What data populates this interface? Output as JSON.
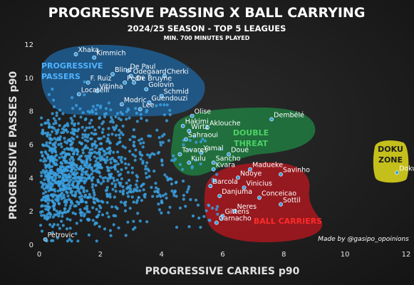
{
  "chart_data": {
    "type": "scatter",
    "title": "PROGRESSIVE PASSING X BALL CARRYING",
    "subtitle": "2024/25 SEASON - TOP 5 LEAGUES",
    "subtitle2": "MIN. 700 MINUTES PLAYED",
    "xlabel": "PROGRESSIVE CARRIES p90",
    "ylabel": "PROGRESSIVE PASSES p90",
    "xlim": [
      0,
      12
    ],
    "ylim": [
      0,
      12
    ],
    "xticks": [
      0,
      2,
      4,
      6,
      8,
      10,
      12
    ],
    "yticks": [
      0,
      2,
      4,
      6,
      8,
      10,
      12
    ],
    "grid": false,
    "credit": "Made by @gasipo_opoinions",
    "colors": {
      "points": "#3aa0e0",
      "passers_zone": "#1f6aa8",
      "double_zone": "#1f8a45",
      "carriers_zone": "#c2161f",
      "doku_zone": "#d7d21c"
    },
    "zones": [
      {
        "key": "passers",
        "lines": [
          "PROGRESSIVE",
          "PASSERS"
        ],
        "color": "#4fb3ff"
      },
      {
        "key": "double",
        "lines": [
          "DOUBLE",
          "THREAT"
        ],
        "color": "#4cd264"
      },
      {
        "key": "carriers",
        "lines": [
          "BALL CARRIERS"
        ],
        "color": "#ff2b2b"
      },
      {
        "key": "doku",
        "lines": [
          "DOKU",
          "ZONE"
        ],
        "color": "#1b1b1b"
      }
    ],
    "labeled_points": [
      {
        "name": "Xhaka",
        "x": 1.2,
        "y": 11.4
      },
      {
        "name": "Kimmich",
        "x": 1.8,
        "y": 11.2
      },
      {
        "name": "De Paul",
        "x": 2.9,
        "y": 10.4
      },
      {
        "name": "Odegaard",
        "x": 3.0,
        "y": 10.1
      },
      {
        "name": "Cherki",
        "x": 4.1,
        "y": 10.1
      },
      {
        "name": "Blind",
        "x": 2.4,
        "y": 10.2
      },
      {
        "name": "F. Ruiz",
        "x": 1.6,
        "y": 9.7
      },
      {
        "name": "Pedri",
        "x": 2.8,
        "y": 9.7
      },
      {
        "name": "De Bruyne",
        "x": 3.1,
        "y": 9.7
      },
      {
        "name": "Vitinha",
        "x": 1.9,
        "y": 9.2
      },
      {
        "name": "Golovin",
        "x": 3.5,
        "y": 9.3
      },
      {
        "name": "Locatelli",
        "x": 1.3,
        "y": 9.0
      },
      {
        "name": "Schmid",
        "x": 4.0,
        "y": 8.9
      },
      {
        "name": "Modric",
        "x": 2.7,
        "y": 8.4
      },
      {
        "name": "Guendouzi",
        "x": 3.6,
        "y": 8.5
      },
      {
        "name": "Lee",
        "x": 3.3,
        "y": 8.1
      },
      {
        "name": "Olise",
        "x": 5.0,
        "y": 7.7
      },
      {
        "name": "Dembélé",
        "x": 7.6,
        "y": 7.5
      },
      {
        "name": "Hakimi",
        "x": 4.7,
        "y": 7.1
      },
      {
        "name": "Aklouche",
        "x": 5.5,
        "y": 7.0
      },
      {
        "name": "Wirtz",
        "x": 4.9,
        "y": 6.8
      },
      {
        "name": "Sahraoui",
        "x": 4.8,
        "y": 6.3
      },
      {
        "name": "Tavares",
        "x": 4.6,
        "y": 5.4
      },
      {
        "name": "Yamal",
        "x": 5.3,
        "y": 5.5
      },
      {
        "name": "Doué",
        "x": 6.2,
        "y": 5.4
      },
      {
        "name": "Kulu",
        "x": 4.9,
        "y": 4.9
      },
      {
        "name": "Sancho",
        "x": 5.7,
        "y": 4.9
      },
      {
        "name": "Kvara",
        "x": 5.7,
        "y": 4.5
      },
      {
        "name": "Madueke",
        "x": 6.9,
        "y": 4.5
      },
      {
        "name": "Ndoye",
        "x": 6.5,
        "y": 4.0
      },
      {
        "name": "Savinho",
        "x": 7.9,
        "y": 4.2
      },
      {
        "name": "Barcola",
        "x": 5.6,
        "y": 3.5
      },
      {
        "name": "Vinicius",
        "x": 6.7,
        "y": 3.4
      },
      {
        "name": "Danjuma",
        "x": 5.9,
        "y": 2.9
      },
      {
        "name": "Conceicao",
        "x": 7.2,
        "y": 2.8
      },
      {
        "name": "Sottil",
        "x": 7.9,
        "y": 2.4
      },
      {
        "name": "Neres",
        "x": 6.4,
        "y": 2.0
      },
      {
        "name": "Gittens",
        "x": 6.0,
        "y": 1.7
      },
      {
        "name": "Garnacho",
        "x": 5.8,
        "y": 1.3
      },
      {
        "name": "Doku",
        "x": 11.7,
        "y": 4.3
      },
      {
        "name": "Petrovic",
        "x": 0.2,
        "y": 0.3
      }
    ]
  }
}
